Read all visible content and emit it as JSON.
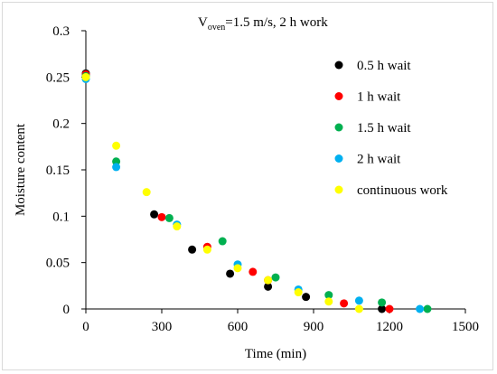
{
  "chart_data": {
    "type": "scatter",
    "title_main": "V",
    "title_sub": "oven",
    "title_rest": "=1.5 m/s, 2 h work",
    "xlabel": "Time (min)",
    "ylabel": "Moisture content",
    "xlim": [
      0,
      1500
    ],
    "ylim": [
      0,
      0.3
    ],
    "x_ticks": [
      0,
      300,
      600,
      900,
      1200,
      1500
    ],
    "y_ticks": [
      0,
      0.05,
      0.1,
      0.15,
      0.2,
      0.25,
      0.3
    ],
    "x_tick_labels": [
      "0",
      "300",
      "600",
      "900",
      "1200",
      "1500"
    ],
    "y_tick_labels": [
      "0",
      "0.05",
      "0.1",
      "0.15",
      "0.2",
      "0.25",
      "0.3"
    ],
    "grid": false,
    "legend_position": "right",
    "series": [
      {
        "name": "0.5 h wait",
        "color": "#000000",
        "points": [
          [
            0,
            0.254
          ],
          [
            270,
            0.102
          ],
          [
            420,
            0.064
          ],
          [
            570,
            0.038
          ],
          [
            720,
            0.024
          ],
          [
            870,
            0.013
          ],
          [
            1170,
            0.0
          ]
        ]
      },
      {
        "name": "1 h wait",
        "color": "#ff0000",
        "points": [
          [
            0,
            0.253
          ],
          [
            300,
            0.099
          ],
          [
            480,
            0.067
          ],
          [
            660,
            0.04
          ],
          [
            720,
            0.031
          ],
          [
            1020,
            0.006
          ],
          [
            1200,
            0.0
          ]
        ]
      },
      {
        "name": "1.5 h wait",
        "color": "#00b050",
        "points": [
          [
            0,
            0.251
          ],
          [
            120,
            0.159
          ],
          [
            330,
            0.098
          ],
          [
            540,
            0.073
          ],
          [
            750,
            0.034
          ],
          [
            960,
            0.015
          ],
          [
            1170,
            0.007
          ],
          [
            1350,
            0.0
          ]
        ]
      },
      {
        "name": "2 h wait",
        "color": "#00b0f0",
        "points": [
          [
            0,
            0.248
          ],
          [
            120,
            0.153
          ],
          [
            360,
            0.091
          ],
          [
            600,
            0.048
          ],
          [
            840,
            0.021
          ],
          [
            1080,
            0.009
          ],
          [
            1320,
            0.0
          ]
        ]
      },
      {
        "name": "continuous work",
        "color": "#ffff00",
        "points": [
          [
            0,
            0.25
          ],
          [
            120,
            0.176
          ],
          [
            240,
            0.126
          ],
          [
            360,
            0.089
          ],
          [
            480,
            0.064
          ],
          [
            600,
            0.044
          ],
          [
            720,
            0.031
          ],
          [
            840,
            0.018
          ],
          [
            960,
            0.008
          ],
          [
            1080,
            0.0
          ]
        ]
      }
    ]
  }
}
